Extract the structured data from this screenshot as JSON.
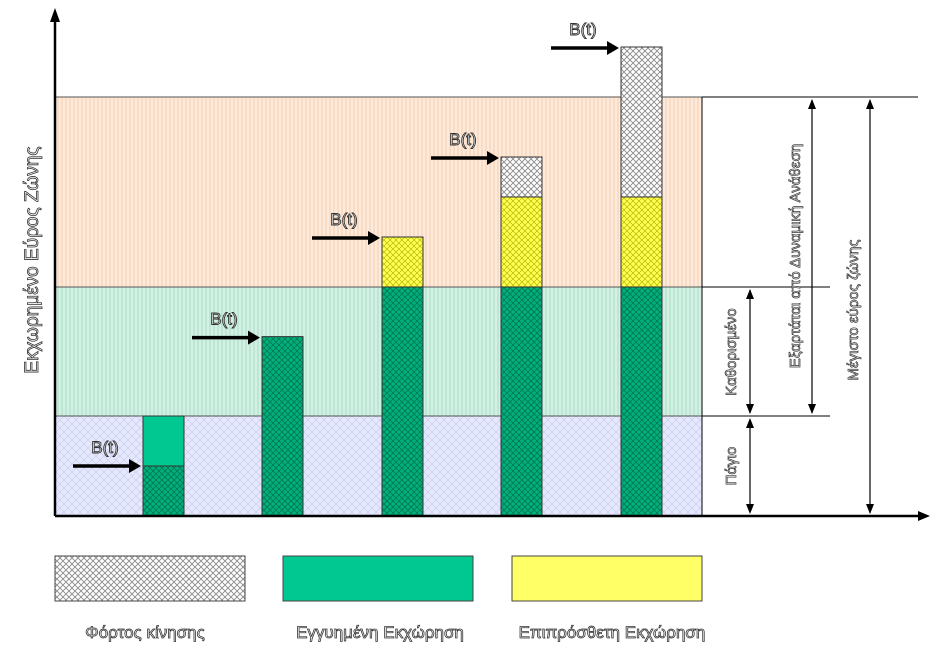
{
  "y_axis_label": "Εκχωρημένο Εύρος Ζώνης",
  "band_labels": {
    "fixed": "Πάγιο",
    "defined": "Καθορισμένο",
    "dynamic": "Εξαρτάται από Δυναμική Ανάθεση",
    "max": "Μέγιστο εύρος ζώνης"
  },
  "bt_label": "B(t)",
  "legend": [
    {
      "label": "Φόρτος κίνησης",
      "swatch": "hatch"
    },
    {
      "label": "Εγγυημένη Εκχώρηση",
      "swatch": "green"
    },
    {
      "label": "Επιπρόσθετη Εκχώρηση",
      "swatch": "yellow"
    }
  ],
  "colors": {
    "guaranteed": "#00c890",
    "additional": "#ffff66",
    "traffic_hatch": "#999999",
    "band_fixed": "#d8dcf8",
    "band_defined": "#bfe8d8",
    "band_dynamic": "#fbe0c8"
  },
  "levels": {
    "fixed": 1,
    "defined": 2.3,
    "max": 4.2
  },
  "bars": [
    {
      "guaranteed": 1.0,
      "additional": 0,
      "traffic": 0,
      "bt": 0.5
    },
    {
      "guaranteed": 1.8,
      "additional": 0,
      "traffic": 0,
      "bt": 1.8
    },
    {
      "guaranteed": 2.3,
      "additional": 0.5,
      "traffic": 0,
      "bt": 2.8
    },
    {
      "guaranteed": 2.3,
      "additional": 0.9,
      "traffic": 0.4,
      "bt": 3.6
    },
    {
      "guaranteed": 2.3,
      "additional": 0.9,
      "traffic": 1.5,
      "bt": 4.7
    }
  ]
}
